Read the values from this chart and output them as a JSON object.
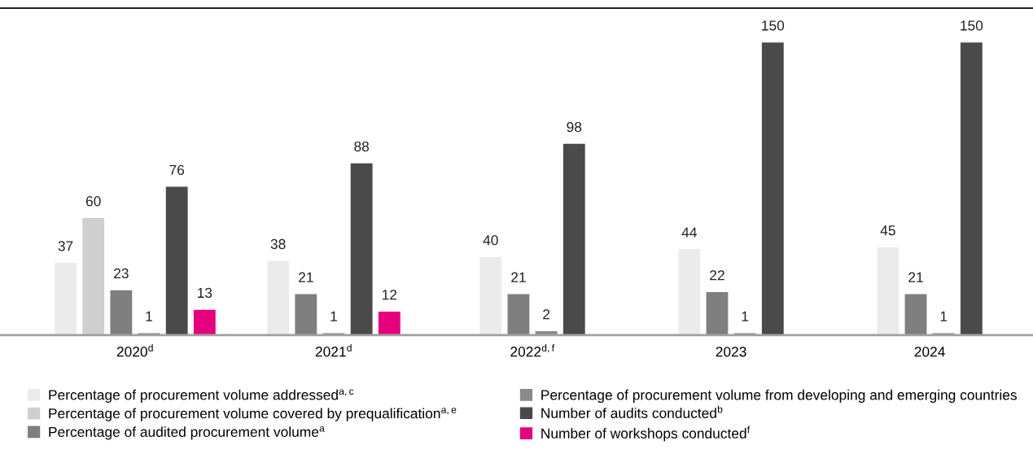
{
  "chart_data": {
    "type": "bar",
    "categories": [
      "2020$^{d}$",
      "2021$^{d}$",
      "2022$^{d,f}$",
      "2023",
      "2024"
    ],
    "series": [
      {
        "name": "Percentage of procurement volume addressed$^{a,c}$",
        "color": "#ebebeb",
        "values": [
          37,
          38,
          40,
          44,
          45
        ]
      },
      {
        "name": "Percentage of procurement volume covered by prequalification$^{a,e}$",
        "color": "#cfcfcf",
        "values": [
          60,
          null,
          null,
          null,
          null
        ]
      },
      {
        "name": "Percentage of audited procurement volume$^{a}$",
        "color": "#7f7f7f",
        "values": [
          23,
          21,
          21,
          22,
          21
        ]
      },
      {
        "name": "Percentage of procurement volume from developing and emerging countries",
        "color": "#8a8a8a",
        "values": [
          1,
          1,
          2,
          1,
          1
        ]
      },
      {
        "name": "Number of audits conducted$^{b}$",
        "color": "#4a4a4a",
        "values": [
          76,
          88,
          98,
          150,
          150
        ]
      },
      {
        "name": "Number of workshops conducted$^{f}$",
        "color": "#e6007e",
        "values": [
          13,
          12,
          null,
          null,
          null
        ]
      }
    ],
    "data_labels": true,
    "legend": "bottom",
    "grid": false
  }
}
